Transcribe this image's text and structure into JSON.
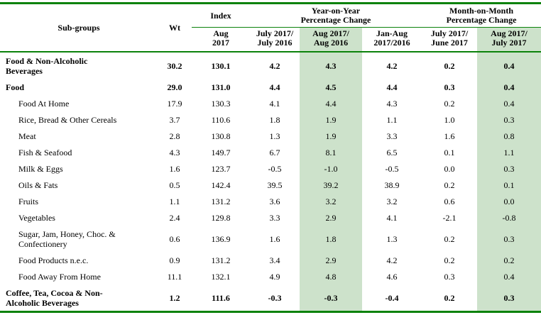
{
  "table": {
    "header": {
      "subgroups_label": "Sub-groups",
      "wt_label": "Wt",
      "index_group_label": "Index",
      "index_sub_label": "Aug\n2017",
      "yoy_group_label": "Year-on-Year\nPercentage Change",
      "mom_group_label": "Month-on-Month\nPercentage Change",
      "yoy_sub_labels": [
        "July 2017/\nJuly 2016",
        "Aug 2017/\nAug 2016",
        "Jan-Aug\n2017/2016"
      ],
      "mom_sub_labels": [
        "July 2017/\nJune 2017",
        "Aug 2017/\nJuly 2017"
      ]
    },
    "highlighted_value_columns": [
      3,
      6
    ],
    "rows": [
      {
        "label": "Food & Non-Alcoholic\nBeverages",
        "bold": true,
        "indent": false,
        "values": [
          "30.2",
          "130.1",
          "4.2",
          "4.3",
          "4.2",
          "0.2",
          "0.4"
        ]
      },
      {
        "label": "Food",
        "bold": true,
        "indent": false,
        "values": [
          "29.0",
          "131.0",
          "4.4",
          "4.5",
          "4.4",
          "0.3",
          "0.4"
        ]
      },
      {
        "label": "Food At Home",
        "bold": false,
        "indent": true,
        "values": [
          "17.9",
          "130.3",
          "4.1",
          "4.4",
          "4.3",
          "0.2",
          "0.4"
        ]
      },
      {
        "label": "Rice, Bread & Other Cereals",
        "bold": false,
        "indent": true,
        "values": [
          "3.7",
          "110.6",
          "1.8",
          "1.9",
          "1.1",
          "1.0",
          "0.3"
        ]
      },
      {
        "label": "Meat",
        "bold": false,
        "indent": true,
        "values": [
          "2.8",
          "130.8",
          "1.3",
          "1.9",
          "3.3",
          "1.6",
          "0.8"
        ]
      },
      {
        "label": "Fish & Seafood",
        "bold": false,
        "indent": true,
        "values": [
          "4.3",
          "149.7",
          "6.7",
          "8.1",
          "6.5",
          "0.1",
          "1.1"
        ]
      },
      {
        "label": "Milk & Eggs",
        "bold": false,
        "indent": true,
        "values": [
          "1.6",
          "123.7",
          "-0.5",
          "-1.0",
          "-0.5",
          "0.0",
          "0.3"
        ]
      },
      {
        "label": "Oils & Fats",
        "bold": false,
        "indent": true,
        "values": [
          "0.5",
          "142.4",
          "39.5",
          "39.2",
          "38.9",
          "0.2",
          "0.1"
        ]
      },
      {
        "label": "Fruits",
        "bold": false,
        "indent": true,
        "values": [
          "1.1",
          "131.2",
          "3.6",
          "3.2",
          "3.2",
          "0.6",
          "0.0"
        ]
      },
      {
        "label": "Vegetables",
        "bold": false,
        "indent": true,
        "values": [
          "2.4",
          "129.8",
          "3.3",
          "2.9",
          "4.1",
          "-2.1",
          "-0.8"
        ]
      },
      {
        "label": "Sugar, Jam, Honey, Choc. &\nConfectionery",
        "bold": false,
        "indent": true,
        "values": [
          "0.6",
          "136.9",
          "1.6",
          "1.8",
          "1.3",
          "0.2",
          "0.3"
        ]
      },
      {
        "label": "Food Products n.e.c.",
        "bold": false,
        "indent": true,
        "values": [
          "0.9",
          "131.2",
          "3.4",
          "2.9",
          "4.2",
          "0.2",
          "0.2"
        ]
      },
      {
        "label": "Food Away From Home",
        "bold": false,
        "indent": true,
        "values": [
          "11.1",
          "132.1",
          "4.9",
          "4.8",
          "4.6",
          "0.3",
          "0.4"
        ]
      },
      {
        "label": "Coffee, Tea, Cocoa & Non-\nAlcoholic Beverages",
        "bold": true,
        "indent": false,
        "values": [
          "1.2",
          "111.6",
          "-0.3",
          "-0.3",
          "-0.4",
          "0.2",
          "0.3"
        ]
      }
    ]
  },
  "colors": {
    "border_green": "#0b820b",
    "highlight_green": "#cde2cb",
    "text": "#000000"
  }
}
